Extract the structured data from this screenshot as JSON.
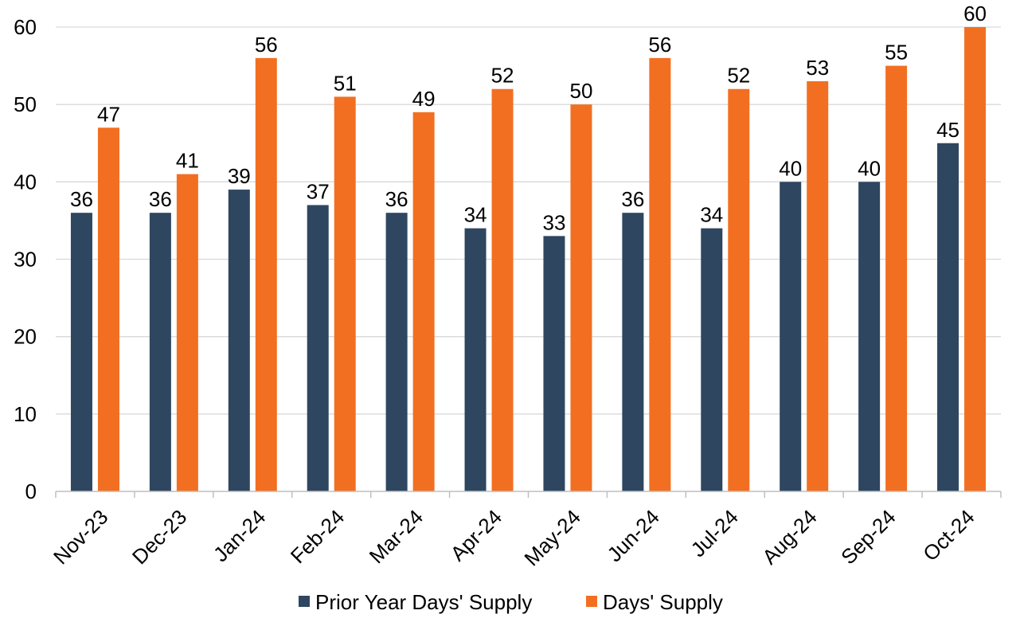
{
  "chart_data": {
    "type": "bar",
    "categories": [
      "Nov-23",
      "Dec-23",
      "Jan-24",
      "Feb-24",
      "Mar-24",
      "Apr-24",
      "May-24",
      "Jun-24",
      "Jul-24",
      "Aug-24",
      "Sep-24",
      "Oct-24"
    ],
    "series": [
      {
        "name": "Prior Year Days' Supply",
        "color": "#2E4660",
        "values": [
          36,
          36,
          39,
          37,
          36,
          34,
          33,
          36,
          34,
          40,
          40,
          45
        ]
      },
      {
        "name": "Days' Supply",
        "color": "#F26F21",
        "values": [
          47,
          41,
          56,
          51,
          49,
          52,
          50,
          56,
          52,
          53,
          55,
          60
        ]
      }
    ],
    "title": "",
    "xlabel": "",
    "ylabel": "",
    "ylim": [
      0,
      60
    ],
    "yticks": [
      0,
      10,
      20,
      30,
      40,
      50,
      60
    ],
    "grid": true,
    "legend_position": "bottom",
    "data_labels": true
  },
  "colors": {
    "grid": "#D9D9D9",
    "axis": "#BFBFBF"
  }
}
